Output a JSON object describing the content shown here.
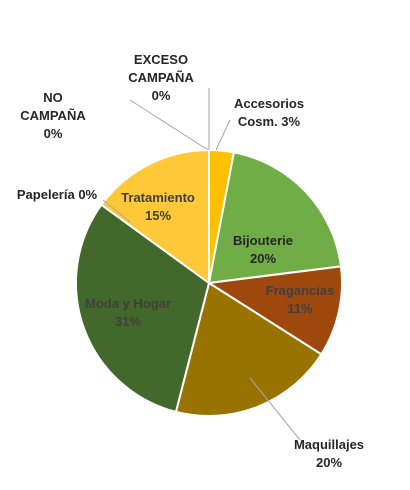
{
  "chart_data": {
    "type": "pie",
    "slices": [
      {
        "label": "Accesorios Cosm.",
        "value": 3,
        "line1": "Accesorios",
        "line2": "Cosm. 3%",
        "color": "#FFC000",
        "label_color": "#262626"
      },
      {
        "label": "Bijouterie",
        "value": 20,
        "line1": "Bijouterie",
        "line2": "20%",
        "color": "#70AD47",
        "label_color": "#262626"
      },
      {
        "label": "Fragancias",
        "value": 11,
        "line1": "Fragancias",
        "line2": "11%",
        "color": "#9E480E",
        "label_color": "#404040"
      },
      {
        "label": "Maquillajes",
        "value": 20,
        "line1": "Maquillajes",
        "line2": "20%",
        "color": "#997300",
        "label_color": "#262626"
      },
      {
        "label": "Moda y Hogar",
        "value": 31,
        "line1": "Moda y Hogar",
        "line2": "31%",
        "color": "#43682B",
        "label_color": "#404040"
      },
      {
        "label": "Papelería",
        "value": 0,
        "line1": "Papelería 0%",
        "line2": "",
        "color": "#636363",
        "label_color": "#262626"
      },
      {
        "label": "Tratamiento",
        "value": 15,
        "line1": "Tratamiento",
        "line2": "15%",
        "color": "#FFC838",
        "label_color": "#404040"
      },
      {
        "label": "NO CAMPAÑA",
        "value": 0,
        "line1": "NO",
        "line2": "CAMPAÑA",
        "line3": "0%",
        "color": "#5B9BD5",
        "label_color": "#262626"
      },
      {
        "label": "EXCESO CAMPAÑA",
        "value": 0,
        "line1": "EXCESO",
        "line2": "CAMPAÑA",
        "line3": "0%",
        "color": "#ED7D31",
        "label_color": "#262626"
      }
    ],
    "legend": "none",
    "start_angle_deg": 0,
    "direction": "clockwise"
  }
}
